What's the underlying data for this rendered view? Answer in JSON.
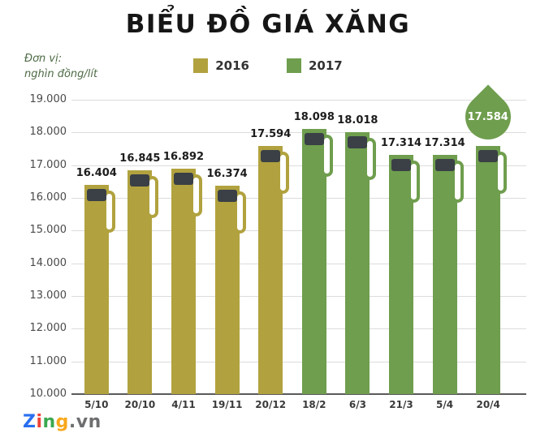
{
  "title": "BIỂU ĐỒ GIÁ XĂNG",
  "unit_label": {
    "line1": "Đơn vị:",
    "line2": "nghìn đồng/lít"
  },
  "colors": {
    "bar_2016": "#b1a23f",
    "bar_2017": "#6f9e4e",
    "nozzle_handle": "#3a4046",
    "grid": "#dcdcdc",
    "axis": "#5a5a5a",
    "title": "#161616"
  },
  "chart_data": {
    "type": "bar",
    "title": "BIỂU ĐỒ GIÁ XĂNG",
    "unit": "nghìn đồng/lít",
    "categories": [
      "5/10",
      "20/10",
      "4/11",
      "19/11",
      "20/12",
      "18/2",
      "6/3",
      "21/3",
      "5/4",
      "20/4"
    ],
    "series": [
      {
        "name": "2016",
        "color": "#b1a23f",
        "values": [
          16404,
          16845,
          16892,
          16374,
          17594,
          null,
          null,
          null,
          null,
          null
        ]
      },
      {
        "name": "2017",
        "color": "#6f9e4e",
        "values": [
          null,
          null,
          null,
          null,
          null,
          18098,
          18018,
          17314,
          17314,
          17584
        ]
      }
    ],
    "value_labels": [
      "16.404",
      "16.845",
      "16.892",
      "16.374",
      "17.594",
      "18.098",
      "18.018",
      "17.314",
      "17.314",
      "17.584"
    ],
    "ylim": [
      10000,
      19000
    ],
    "ytick_labels": [
      "19.000",
      "18.000",
      "17.000",
      "16.000",
      "15.000",
      "14.000",
      "13.000",
      "12.000",
      "11.000",
      "10.000"
    ],
    "grid": true,
    "legend_position": "top",
    "highlight": {
      "category": "20/4",
      "label": "17.584",
      "shape": "droplet"
    }
  },
  "footer": {
    "logo": {
      "letters": [
        {
          "ch": "Z",
          "color": "#2b6ff0"
        },
        {
          "ch": "i",
          "color": "#ef4136"
        },
        {
          "ch": "n",
          "color": "#3aa84f"
        },
        {
          "ch": "g",
          "color": "#f8a81c"
        }
      ],
      "suffix": ".vn",
      "suffix_color": "#6d6e70"
    }
  }
}
